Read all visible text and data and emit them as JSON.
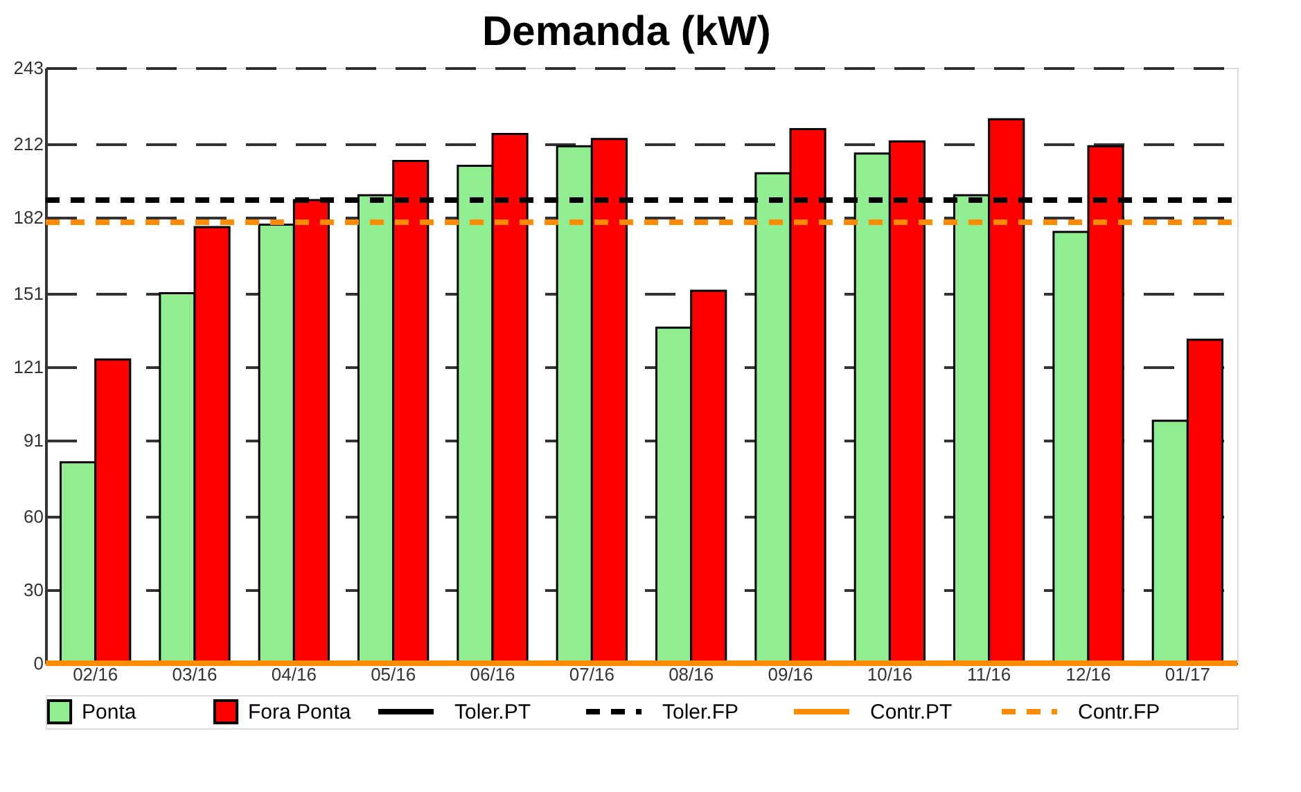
{
  "chart_data": {
    "type": "bar",
    "title": "Demanda (kW)",
    "categories": [
      "02/16",
      "03/16",
      "04/16",
      "05/16",
      "06/16",
      "07/16",
      "08/16",
      "09/16",
      "10/16",
      "11/16",
      "12/16",
      "01/17"
    ],
    "series": [
      {
        "name": "Ponta",
        "color": "#90ee90",
        "values": [
          82,
          151,
          179,
          191,
          203,
          211,
          137,
          200,
          208,
          191,
          176,
          99
        ]
      },
      {
        "name": "Fora Ponta",
        "color": "#ff0000",
        "values": [
          124,
          178,
          189,
          205,
          216,
          214,
          152,
          218,
          213,
          222,
          211,
          132
        ]
      }
    ],
    "ref_lines": [
      {
        "axis": "y",
        "value": null,
        "label": "Toler.PT",
        "color": "#000000",
        "line_style": "solid"
      },
      {
        "axis": "y",
        "value": 189,
        "label": "Toler.FP",
        "color": "#000000",
        "line_style": "dashed"
      },
      {
        "axis": "y",
        "value": 0,
        "label": "Contr.PT",
        "color": "#ff8c00",
        "line_style": "solid"
      },
      {
        "axis": "y",
        "value": 180,
        "label": "Contr.FP",
        "color": "#ff8c00",
        "line_style": "dashed"
      }
    ],
    "ylim": [
      0,
      243
    ],
    "yticks": [
      0,
      30,
      60,
      91,
      121,
      151,
      182,
      212,
      243
    ],
    "grid": "y",
    "legend": "bottom"
  }
}
